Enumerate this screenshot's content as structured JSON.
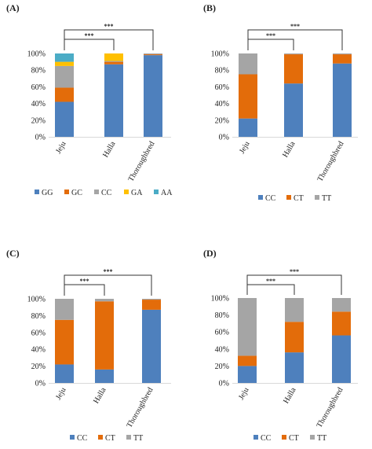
{
  "chart_data": [
    {
      "type": "bar",
      "stacked": true,
      "panel": "(A)",
      "categories": [
        "Jeju",
        "Halla",
        "Thoroughbred"
      ],
      "ylim": [
        0,
        100
      ],
      "yticks": [
        "0%",
        "20%",
        "40%",
        "60%",
        "80%",
        "100%"
      ],
      "gridlines": false,
      "legend_position": "bottom",
      "series": [
        {
          "name": "GG",
          "color": "#4e80bd",
          "values": [
            42,
            87,
            98
          ]
        },
        {
          "name": "GC",
          "color": "#e36c0a",
          "values": [
            17,
            3,
            1
          ]
        },
        {
          "name": "CC",
          "color": "#a5a5a5",
          "values": [
            26,
            1,
            1
          ]
        },
        {
          "name": "GA",
          "color": "#ffc000",
          "values": [
            5,
            9,
            0
          ]
        },
        {
          "name": "AA",
          "color": "#4bacc6",
          "values": [
            10,
            0,
            0
          ]
        }
      ],
      "significance": [
        {
          "from": "Jeju",
          "to": "Halla",
          "label": "***"
        },
        {
          "from": "Jeju",
          "to": "Thoroughbred",
          "label": "***"
        }
      ]
    },
    {
      "type": "bar",
      "stacked": true,
      "panel": "(B)",
      "categories": [
        "Jeju",
        "Halla",
        "Thoroughbred"
      ],
      "ylim": [
        0,
        100
      ],
      "yticks": [
        "0%",
        "20%",
        "40%",
        "60%",
        "80%",
        "100%"
      ],
      "gridlines": false,
      "legend_position": "bottom",
      "series": [
        {
          "name": "CC",
          "color": "#4e80bd",
          "values": [
            22,
            64,
            88
          ]
        },
        {
          "name": "CT",
          "color": "#e36c0a",
          "values": [
            53,
            35,
            11
          ]
        },
        {
          "name": "TT",
          "color": "#a5a5a5",
          "values": [
            25,
            1,
            1
          ]
        }
      ],
      "significance": [
        {
          "from": "Jeju",
          "to": "Halla",
          "label": "***"
        },
        {
          "from": "Jeju",
          "to": "Thoroughbred",
          "label": "***"
        }
      ]
    },
    {
      "type": "bar",
      "stacked": true,
      "panel": "(C)",
      "categories": [
        "Jeju",
        "Halla",
        "Thoroughbred"
      ],
      "ylim": [
        0,
        100
      ],
      "yticks": [
        "0%",
        "20%",
        "40%",
        "60%",
        "80%",
        "100%"
      ],
      "gridlines": false,
      "legend_position": "bottom",
      "series": [
        {
          "name": "CC",
          "color": "#4e80bd",
          "values": [
            22,
            16,
            87
          ]
        },
        {
          "name": "CT",
          "color": "#e36c0a",
          "values": [
            53,
            81,
            12
          ]
        },
        {
          "name": "TT",
          "color": "#a5a5a5",
          "values": [
            25,
            3,
            1
          ]
        }
      ],
      "significance": [
        {
          "from": "Jeju",
          "to": "Halla",
          "label": "***"
        },
        {
          "from": "Jeju",
          "to": "Thoroughbred",
          "label": "***"
        }
      ]
    },
    {
      "type": "bar",
      "stacked": true,
      "panel": "(D)",
      "categories": [
        "Jeju",
        "Halla",
        "Thoroughbred"
      ],
      "ylim": [
        0,
        100
      ],
      "yticks": [
        "0%",
        "20%",
        "40%",
        "60%",
        "80%",
        "100%"
      ],
      "gridlines": false,
      "legend_position": "bottom",
      "series": [
        {
          "name": "CC",
          "color": "#4e80bd",
          "values": [
            20,
            36,
            56
          ]
        },
        {
          "name": "CT",
          "color": "#e36c0a",
          "values": [
            12,
            36,
            28
          ]
        },
        {
          "name": "TT",
          "color": "#a5a5a5",
          "values": [
            68,
            28,
            16
          ]
        }
      ],
      "significance": [
        {
          "from": "Jeju",
          "to": "Halla",
          "label": "***"
        },
        {
          "from": "Jeju",
          "to": "Thoroughbred",
          "label": "***"
        }
      ]
    }
  ]
}
